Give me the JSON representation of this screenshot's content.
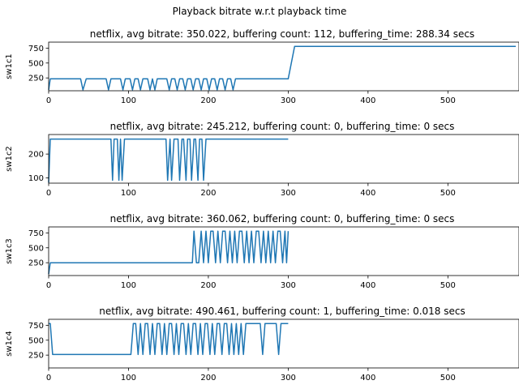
{
  "figure": {
    "suptitle": "Playback bitrate w.r.t playback time"
  },
  "chart_data": [
    {
      "type": "line",
      "title": "netflix, avg bitrate: 350.022, buffering count: 112, buffering_time: 288.34 secs",
      "xlabel": "",
      "ylabel": "sw1c1",
      "xlim": [
        0,
        585
      ],
      "ylim": [
        35,
        850
      ],
      "xticks": [
        0,
        100,
        200,
        300,
        400,
        500
      ],
      "yticks": [
        250,
        500,
        750
      ],
      "grid": false,
      "series": [
        {
          "color": "#1f77b4",
          "x": [
            0,
            2,
            4,
            40,
            43,
            47,
            72,
            75,
            78,
            90,
            93,
            96,
            102,
            105,
            108,
            112,
            115,
            118,
            124,
            127,
            130,
            133,
            136,
            139,
            148,
            151,
            154,
            158,
            161,
            164,
            168,
            171,
            174,
            178,
            181,
            184,
            188,
            191,
            194,
            198,
            201,
            204,
            208,
            211,
            214,
            218,
            221,
            224,
            228,
            231,
            234,
            300,
            308,
            585
          ],
          "y": [
            50,
            235,
            235,
            235,
            50,
            235,
            235,
            50,
            235,
            235,
            50,
            235,
            235,
            50,
            235,
            235,
            50,
            235,
            235,
            50,
            235,
            50,
            235,
            235,
            235,
            50,
            235,
            235,
            50,
            235,
            235,
            50,
            235,
            235,
            50,
            235,
            235,
            50,
            235,
            235,
            50,
            235,
            235,
            50,
            235,
            235,
            50,
            235,
            235,
            50,
            235,
            235,
            780,
            780
          ]
        }
      ]
    },
    {
      "type": "line",
      "title": "netflix, avg bitrate: 245.212, buffering count: 0, buffering_time: 0 secs",
      "xlabel": "",
      "ylabel": "sw1c2",
      "xlim": [
        0,
        585
      ],
      "ylim": [
        78,
        282
      ],
      "xticks": [
        0,
        100,
        200,
        300,
        400,
        500
      ],
      "yticks": [
        100,
        200
      ],
      "grid": false,
      "series": [
        {
          "color": "#1f77b4",
          "x": [
            0,
            2,
            78,
            80,
            82,
            84,
            86,
            88,
            90,
            92,
            95,
            97,
            147,
            149,
            152,
            154,
            157,
            159,
            162,
            164,
            167,
            169,
            172,
            174,
            177,
            179,
            182,
            184,
            187,
            189,
            192,
            194,
            197,
            199,
            300
          ],
          "y": [
            80,
            263,
            263,
            90,
            263,
            263,
            263,
            90,
            263,
            90,
            263,
            263,
            263,
            90,
            263,
            90,
            263,
            263,
            263,
            90,
            263,
            263,
            90,
            263,
            263,
            90,
            263,
            263,
            90,
            263,
            263,
            90,
            263,
            263,
            263
          ]
        }
      ]
    },
    {
      "type": "line",
      "title": "netflix, avg bitrate: 360.062, buffering count: 0, buffering_time: 0 secs",
      "xlabel": "",
      "ylabel": "sw1c3",
      "xlim": [
        0,
        585
      ],
      "ylim": [
        35,
        850
      ],
      "xticks": [
        0,
        100,
        200,
        300,
        400,
        500
      ],
      "yticks": [
        250,
        500,
        750
      ],
      "grid": false,
      "series": [
        {
          "color": "#1f77b4",
          "x": [
            0,
            2,
            180,
            182,
            185,
            188,
            191,
            194,
            197,
            200,
            203,
            206,
            209,
            212,
            215,
            218,
            221,
            224,
            227,
            230,
            233,
            236,
            239,
            242,
            245,
            248,
            251,
            254,
            257,
            260,
            263,
            266,
            269,
            272,
            275,
            278,
            281,
            284,
            287,
            290,
            293,
            296,
            298,
            300
          ],
          "y": [
            60,
            250,
            250,
            780,
            250,
            250,
            780,
            250,
            780,
            250,
            780,
            780,
            250,
            780,
            250,
            780,
            780,
            250,
            780,
            250,
            780,
            250,
            780,
            780,
            250,
            780,
            250,
            780,
            250,
            780,
            780,
            250,
            780,
            250,
            780,
            250,
            780,
            250,
            780,
            780,
            250,
            780,
            250,
            780
          ]
        }
      ]
    },
    {
      "type": "line",
      "title": "netflix, avg bitrate: 490.461, buffering count: 1, buffering_time: 0.018 secs",
      "xlabel": "",
      "ylabel": "sw1c4",
      "xlim": [
        0,
        585
      ],
      "ylim": [
        35,
        850
      ],
      "xticks": [
        0,
        100,
        200,
        300,
        400,
        500
      ],
      "yticks": [
        250,
        500,
        750
      ],
      "grid": false,
      "series": [
        {
          "color": "#1f77b4",
          "x": [
            0,
            2,
            5,
            103,
            106,
            109,
            112,
            115,
            118,
            121,
            124,
            127,
            130,
            133,
            136,
            139,
            142,
            145,
            148,
            151,
            154,
            157,
            160,
            163,
            166,
            169,
            172,
            175,
            178,
            181,
            184,
            187,
            190,
            193,
            196,
            199,
            202,
            205,
            208,
            211,
            214,
            217,
            220,
            223,
            226,
            229,
            232,
            235,
            238,
            241,
            244,
            247,
            250,
            265,
            268,
            271,
            285,
            288,
            291,
            297,
            300
          ],
          "y": [
            780,
            780,
            260,
            260,
            780,
            780,
            260,
            780,
            260,
            780,
            780,
            260,
            780,
            260,
            780,
            780,
            260,
            780,
            260,
            780,
            780,
            260,
            780,
            260,
            780,
            780,
            260,
            780,
            260,
            780,
            780,
            260,
            780,
            260,
            780,
            780,
            260,
            780,
            260,
            780,
            780,
            260,
            780,
            780,
            260,
            780,
            260,
            780,
            260,
            780,
            260,
            780,
            780,
            780,
            260,
            780,
            780,
            260,
            780,
            780,
            780
          ]
        }
      ]
    }
  ]
}
